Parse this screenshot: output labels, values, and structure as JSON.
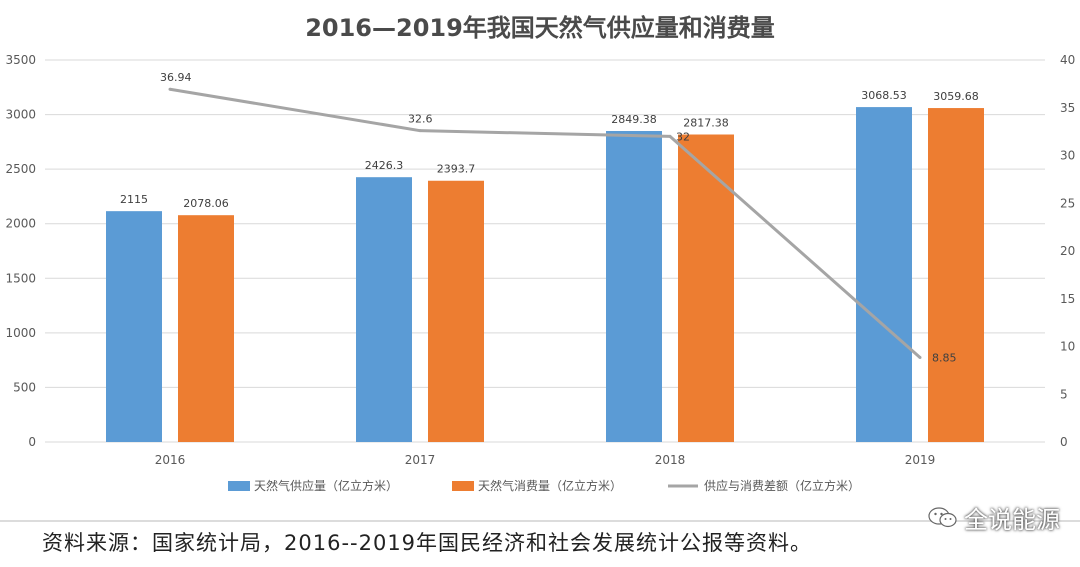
{
  "chart_data": {
    "type": "bar",
    "title": "2016—2019年我国天然气供应量和消费量",
    "categories": [
      "2016",
      "2017",
      "2018",
      "2019"
    ],
    "series": [
      {
        "name": "天然气供应量（亿立方米）",
        "type": "bar",
        "axis": "left",
        "color": "#5b9bd5",
        "values": [
          2115,
          2426.3,
          2849.38,
          3068.53
        ],
        "labels": [
          "2115",
          "2426.3",
          "2849.38",
          "3068.53"
        ]
      },
      {
        "name": "天然气消费量（亿立方米）",
        "type": "bar",
        "axis": "left",
        "color": "#ed7d31",
        "values": [
          2078.06,
          2393.7,
          2817.38,
          3059.68
        ],
        "labels": [
          "2078.06",
          "2393.7",
          "2817.38",
          "3059.68"
        ]
      },
      {
        "name": "供应与消费差额（亿立方米）",
        "type": "line",
        "axis": "right",
        "color": "#a5a5a5",
        "values": [
          36.94,
          32.6,
          32,
          8.85
        ],
        "labels": [
          "36.94",
          "32.6",
          "32",
          "8.85"
        ]
      }
    ],
    "y_left": {
      "min": 0,
      "max": 3500,
      "step": 500,
      "ticks": [
        "0",
        "500",
        "1000",
        "1500",
        "2000",
        "2500",
        "3000",
        "3500"
      ]
    },
    "y_right": {
      "min": 0,
      "max": 40,
      "step": 5,
      "ticks": [
        "0",
        "5",
        "10",
        "15",
        "20",
        "25",
        "30",
        "35",
        "40"
      ]
    },
    "grid": true,
    "legend_position": "bottom"
  },
  "footer": {
    "source": "资料来源：国家统计局，2016--2019年国民经济和社会发展统计公报等资料。"
  },
  "watermark": {
    "text": "全说能源",
    "icon": "wechat-icon"
  }
}
